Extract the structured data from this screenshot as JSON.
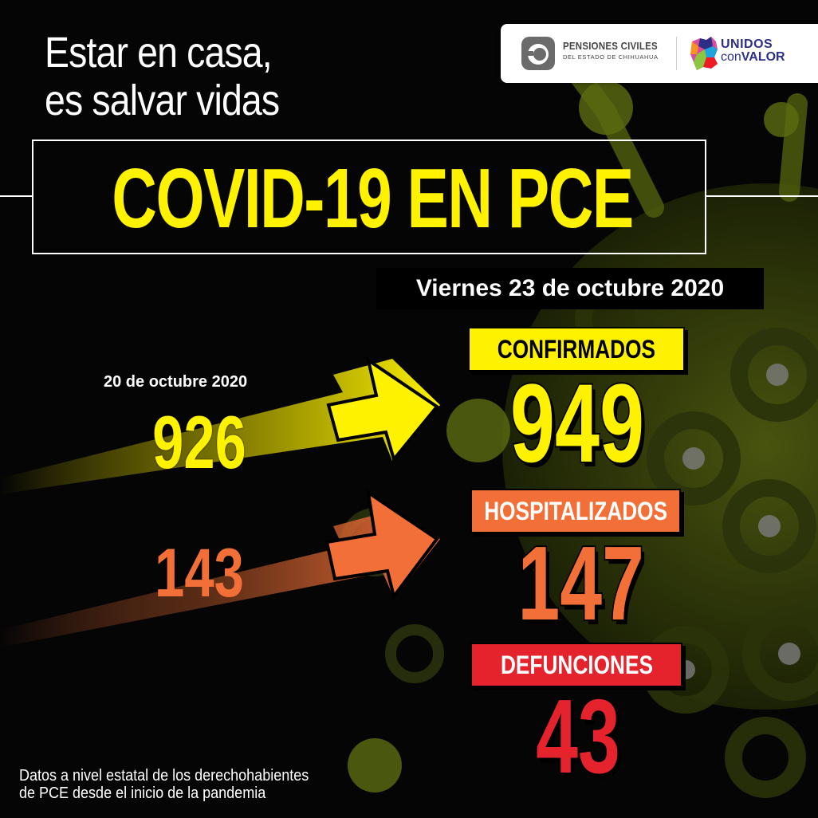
{
  "headline": {
    "line1": "Estar en casa,",
    "line2": "es salvar vidas"
  },
  "logos": {
    "pensiones_title": "PENSIONES CIVILES",
    "pensiones_subtitle": "DEL ESTADO DE CHIHUAHUA",
    "unidos_line1": "UNIDOS",
    "unidos_con": "con",
    "unidos_valor": "VALOR"
  },
  "title": "COVID-19 EN PCE",
  "current_date": "Viernes 23 de octubre 2020",
  "previous": {
    "date": "20 de octubre 2020",
    "confirmados": "926",
    "hospitalizados": "143"
  },
  "current": {
    "confirmados_label": "CONFIRMADOS",
    "confirmados": "949",
    "hospitalizados_label": "HOSPITALIZADOS",
    "hospitalizados": "147",
    "defunciones_label": "DEFUNCIONES",
    "defunciones": "43"
  },
  "footnote": {
    "line1": "Datos a nivel estatal de los derechohabientes",
    "line2": "de PCE desde el inicio de la pandemia"
  },
  "colors": {
    "yellow": "#fff200",
    "orange": "#f36f38",
    "red": "#e5232d",
    "virus_green": "#4a5a10"
  }
}
